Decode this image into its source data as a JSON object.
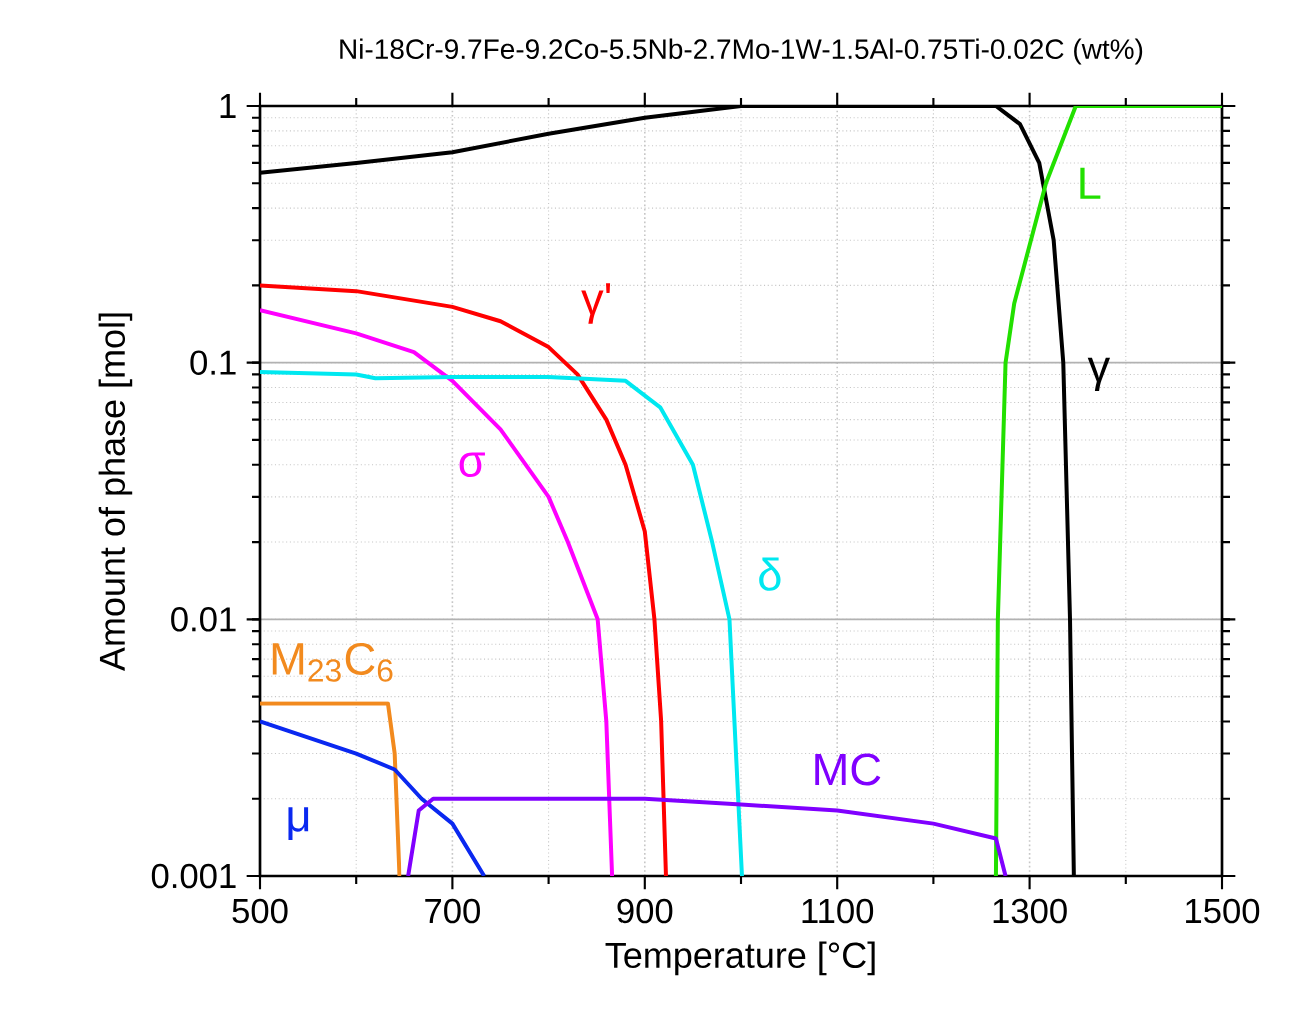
{
  "chart_data": {
    "type": "line",
    "title": "Ni-18Cr-9.7Fe-9.2Co-5.5Nb-2.7Mo-1W-1.5Al-0.75Ti-0.02C (wt%)",
    "xlabel": "Temperature [°C]",
    "ylabel": "Amount of phase [mol]",
    "log": "y",
    "grid": true,
    "xlim": [
      500,
      1500
    ],
    "xticks": [
      500,
      700,
      900,
      1100,
      1300,
      1500
    ],
    "ylim": [
      0.001,
      1
    ],
    "yticks": [
      0.001,
      0.01,
      0.1,
      1
    ],
    "series": [
      {
        "name": "γ",
        "color": "#000000",
        "x": [
          500,
          600,
          700,
          800,
          900,
          1000,
          1265,
          1290,
          1310,
          1325,
          1335,
          1342,
          1346
        ],
        "values": [
          0.55,
          0.6,
          0.66,
          0.78,
          0.9,
          1,
          1,
          0.85,
          0.6,
          0.3,
          0.1,
          0.01,
          0.001
        ]
      },
      {
        "name": "L",
        "color": "#22e000",
        "x": [
          1265,
          1267,
          1275,
          1284,
          1317,
          1348,
          1500
        ],
        "values": [
          0.001,
          0.01,
          0.1,
          0.17,
          0.5,
          1,
          1
        ]
      },
      {
        "name": "γ'",
        "color": "#ff0000",
        "x": [
          500,
          600,
          700,
          750,
          800,
          830,
          860,
          880,
          900,
          910,
          917,
          922
        ],
        "values": [
          0.2,
          0.19,
          0.165,
          0.145,
          0.115,
          0.09,
          0.06,
          0.04,
          0.022,
          0.01,
          0.004,
          0.001
        ]
      },
      {
        "name": "σ",
        "color": "#ff00ff",
        "x": [
          500,
          600,
          660,
          700,
          750,
          800,
          820,
          851,
          860,
          866
        ],
        "values": [
          0.16,
          0.13,
          0.11,
          0.085,
          0.055,
          0.03,
          0.02,
          0.01,
          0.004,
          0.001
        ]
      },
      {
        "name": "δ",
        "color": "#00e8f0",
        "x": [
          500,
          600,
          620,
          700,
          800,
          880,
          916,
          950,
          970,
          988,
          1001
        ],
        "values": [
          0.092,
          0.09,
          0.087,
          0.088,
          0.088,
          0.085,
          0.067,
          0.04,
          0.02,
          0.01,
          0.001
        ]
      },
      {
        "name": "M$_{23}$C$_{6}$",
        "color": "#f28a1e",
        "x": [
          500,
          633,
          640,
          645
        ],
        "values": [
          0.0047,
          0.0047,
          0.003,
          0.001
        ]
      },
      {
        "name": "μ",
        "color": "#0a28f0",
        "x": [
          500,
          600,
          640,
          668,
          700,
          733
        ],
        "values": [
          0.004,
          0.003,
          0.0026,
          0.002,
          0.0016,
          0.001
        ]
      },
      {
        "name": "MC",
        "color": "#8000ff",
        "x": [
          654,
          665,
          680,
          900,
          1000,
          1100,
          1200,
          1265,
          1275
        ],
        "values": [
          0.001,
          0.0018,
          0.002,
          0.002,
          0.0019,
          0.0018,
          0.0016,
          0.0014,
          0.001
        ]
      }
    ]
  }
}
